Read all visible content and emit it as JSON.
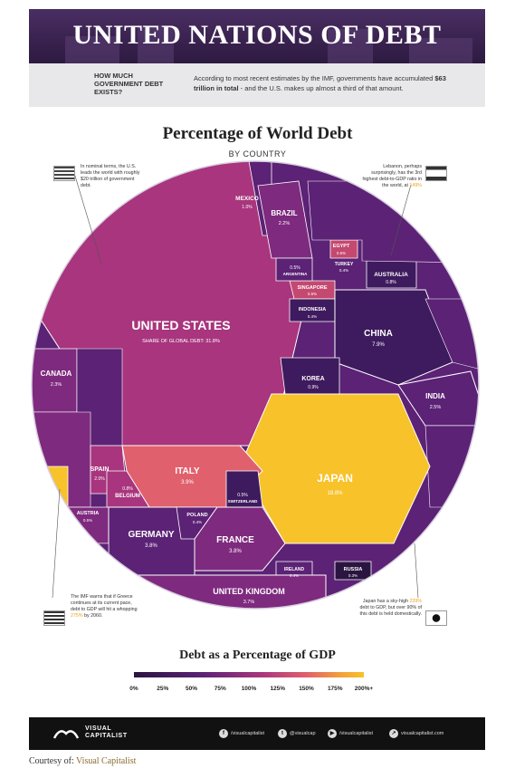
{
  "header": {
    "title": "UNITED NATIONS OF DEBT",
    "question": "HOW MUCH GOVERNMENT DEBT EXISTS?",
    "intro_a": "According to most recent estimates by the IMF, governments have accumulated ",
    "intro_b": "$63 trillion in total",
    "intro_c": " - and the U.S. makes up almost a third of that amount."
  },
  "chart_data": {
    "type": "treemap",
    "title": "Percentage of World Debt",
    "subtitle": "BY COUNTRY",
    "center_label": "SHARE OF GLOBAL DEBT: 31.8%",
    "cells": [
      {
        "name": "UNITED STATES",
        "value": "31.8%",
        "gdp_band": "100-125%"
      },
      {
        "name": "JAPAN",
        "value": "18.8%",
        "gdp_band": "200%+"
      },
      {
        "name": "CHINA",
        "value": "7.9%",
        "gdp_band": "<25-50%"
      },
      {
        "name": "ITALY",
        "value": "3.9%",
        "gdp_band": "125-150%"
      },
      {
        "name": "FRANCE",
        "value": "3.8%",
        "gdp_band": "75-100%"
      },
      {
        "name": "GERMANY",
        "value": "3.8%",
        "gdp_band": "50-75%"
      },
      {
        "name": "UNITED KINGDOM",
        "value": "3.7%",
        "gdp_band": "75-100%"
      },
      {
        "name": "INDIA",
        "value": "2.5%",
        "gdp_band": "50-75%"
      },
      {
        "name": "CANADA",
        "value": "2.3%",
        "gdp_band": "75-100%"
      },
      {
        "name": "BRAZIL",
        "value": "2.2%",
        "gdp_band": "75-100%"
      },
      {
        "name": "SPAIN",
        "value": "2.0%",
        "gdp_band": "75-100%"
      },
      {
        "name": "MEXICO",
        "value": "1.0%",
        "gdp_band": "50-75%"
      },
      {
        "name": "KOREA",
        "value": "0.9%",
        "gdp_band": "25-50%"
      },
      {
        "name": "AUSTRALIA",
        "value": "0.8%",
        "gdp_band": "25-50%"
      },
      {
        "name": "BELGIUM",
        "value": "0.8%",
        "gdp_band": "100-125%"
      },
      {
        "name": "EGYPT",
        "value": "0.5%",
        "gdp_band": "100-125%"
      },
      {
        "name": "AUSTRIA",
        "value": "0.5%",
        "gdp_band": "75-100%"
      },
      {
        "name": "SWITZERLAND",
        "value": "0.5%",
        "gdp_band": "25-50%"
      },
      {
        "name": "ARGENTINA",
        "value": "0.5%",
        "gdp_band": "50-75%"
      },
      {
        "name": "SINGAPORE",
        "value": "0.5%",
        "gdp_band": "100-125%"
      },
      {
        "name": "INDONESIA",
        "value": "0.4%",
        "gdp_band": "25-50%"
      },
      {
        "name": "POLAND",
        "value": "0.4%",
        "gdp_band": "50-75%"
      },
      {
        "name": "IRELAND",
        "value": "0.4%",
        "gdp_band": "50-75%"
      },
      {
        "name": "TURKEY",
        "value": "0.4%",
        "gdp_band": "25-50%"
      },
      {
        "name": "RUSSIA",
        "value": "0.3%",
        "gdp_band": "<25%"
      }
    ],
    "legend": {
      "title": "Debt as a Percentage of GDP",
      "ticks": [
        "0%",
        "25%",
        "50%",
        "75%",
        "100%",
        "125%",
        "150%",
        "175%",
        "200%+"
      ]
    }
  },
  "notes": {
    "us": "In nominal terms, the U.S. leads the world with roughly $20 trillion of government debt.",
    "lebanon_a": "Lebanon, perhaps surprisingly, has the 3rd highest debt-to-GDP ratio in the world, at ",
    "lebanon_b": "149%",
    "greece_a": "The IMF warns that if Greece continues at its current pace, debt to GDP will hit a whopping ",
    "greece_b": "275%",
    "greece_c": " by 2060.",
    "japan_a": "Japan has a sky-high ",
    "japan_b": "239%",
    "japan_c": " debt to GDP, but over 90% of this debt is held domestically."
  },
  "footer": {
    "brand_1": "VISUAL",
    "brand_2": "CAPITALIST",
    "facebook": "/visualcapitalist",
    "twitter": "@visualcap",
    "youtube": "/visualcapitalist",
    "web": "visualcapitalist.com"
  },
  "courtesy": {
    "label": "Courtesy of:",
    "source": "Visual Capitalist"
  },
  "colors": {
    "band_lt25": "#2a1540",
    "band_25": "#3e1a5e",
    "band_50": "#5b2275",
    "band_75": "#7e2a7e",
    "band_100": "#a8357d",
    "band_125": "#c4486f",
    "band_150": "#e0606d",
    "band_200": "#f7c22a"
  }
}
